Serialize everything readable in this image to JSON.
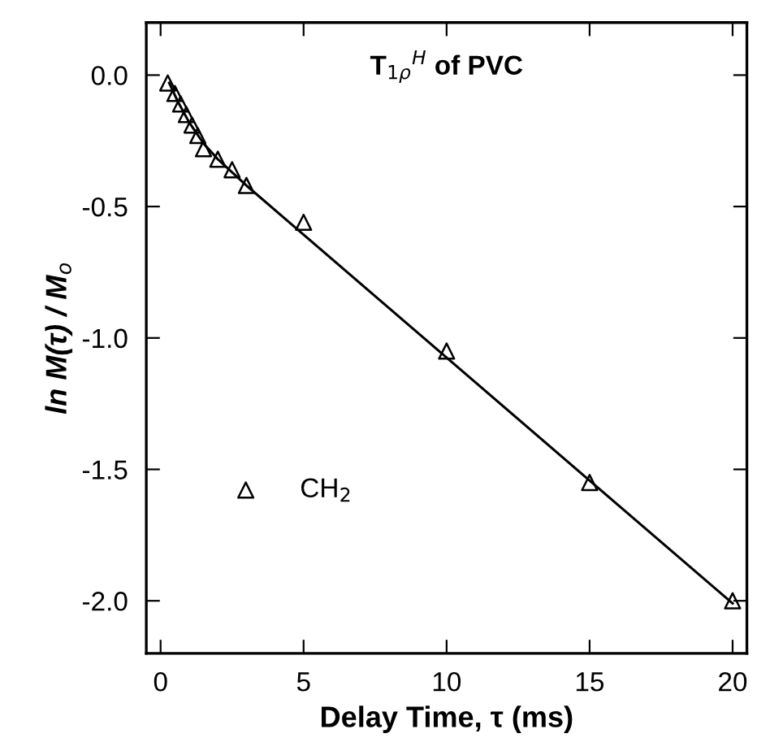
{
  "chart_data": {
    "type": "scatter",
    "title": "T$_{1ρ}$$^{H}$ of PVC",
    "xlabel": "Delay Time, τ (ms)",
    "ylabel": "ln M(τ) / M$_{o}$",
    "series": [
      {
        "name": "CH$_{2}$",
        "color": "#000000",
        "marker": "triangle",
        "x": [
          0.25,
          0.5,
          0.7,
          0.9,
          1.1,
          1.3,
          1.5,
          2,
          2.5,
          3,
          5,
          10,
          15,
          20
        ],
        "values": [
          -0.03,
          -0.07,
          -0.11,
          -0.15,
          -0.19,
          -0.23,
          -0.28,
          -0.32,
          -0.36,
          -0.42,
          -0.56,
          -1.05,
          -1.55,
          -2.0
        ]
      },
      {
        "type": "line",
        "color": "#000000",
        "marker": "none",
        "line_style": "solid",
        "x": [
          0.3,
          0.6,
          1,
          1.5,
          2,
          3,
          20
        ],
        "values": [
          -0.03,
          -0.1,
          -0.18,
          -0.26,
          -0.32,
          -0.42,
          -2.01
        ]
      }
    ],
    "xlim": [
      -0.5,
      20.5
    ],
    "ylim": [
      -2.2,
      0.2
    ],
    "xticks": [
      0,
      5,
      10,
      15,
      20
    ],
    "yticks": [
      {
        "value": 0.0,
        "label": "0.0"
      },
      {
        "value": -0.5,
        "label": "-0.5"
      },
      {
        "value": -1.0,
        "label": "-1.0"
      },
      {
        "value": -1.5,
        "label": "-1.5"
      },
      {
        "value": -2.0,
        "label": "-2.0"
      }
    ],
    "grid": false,
    "legend": "bottom left"
  }
}
